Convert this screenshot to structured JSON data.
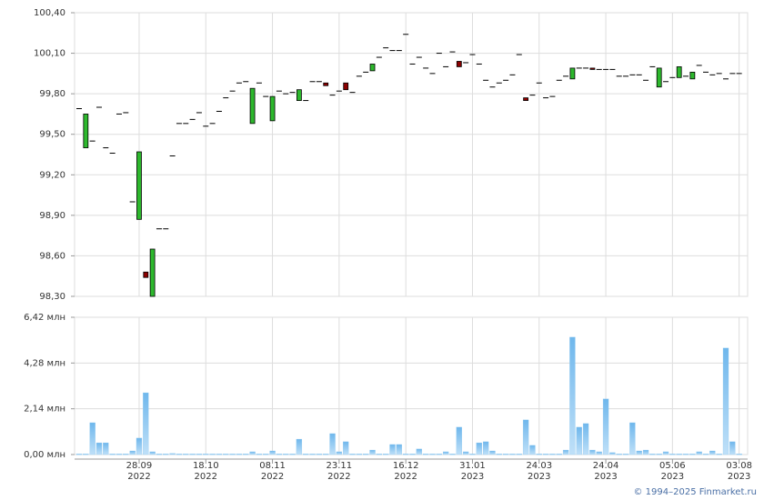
{
  "credit": "© 1994–2025 Finmarket.ru",
  "chart_data": [
    {
      "type": "candlestick",
      "up_color": "#2db82d",
      "down_color": "#8b0000",
      "grid": true,
      "ylim": [
        98.3,
        100.4
      ],
      "yticks": [
        {
          "value": 98.3,
          "label": "98,30"
        },
        {
          "value": 98.6,
          "label": "98,60"
        },
        {
          "value": 98.9,
          "label": "98,90"
        },
        {
          "value": 99.2,
          "label": "99,20"
        },
        {
          "value": 99.5,
          "label": "99,50"
        },
        {
          "value": 99.8,
          "label": "99,80"
        },
        {
          "value": 100.1,
          "label": "100,10"
        },
        {
          "value": 100.4,
          "label": "100,40"
        }
      ],
      "categories": [
        null,
        null,
        null,
        null,
        null,
        null,
        null,
        null,
        null,
        "28.09\n2022",
        null,
        null,
        null,
        null,
        null,
        null,
        null,
        null,
        null,
        "18.10\n2022",
        null,
        null,
        null,
        null,
        null,
        null,
        null,
        null,
        null,
        "08.11\n2022",
        null,
        null,
        null,
        null,
        null,
        null,
        null,
        null,
        null,
        "23.11\n2022",
        null,
        null,
        null,
        null,
        null,
        null,
        null,
        null,
        null,
        "16.12\n2022",
        null,
        null,
        null,
        null,
        null,
        null,
        null,
        null,
        null,
        "31.01\n2023",
        null,
        null,
        null,
        null,
        null,
        null,
        null,
        null,
        null,
        "24.03\n2023",
        null,
        null,
        null,
        null,
        null,
        null,
        null,
        null,
        null,
        "24.04\n2023",
        null,
        null,
        null,
        null,
        null,
        null,
        null,
        null,
        null,
        "05.06\n2023",
        null,
        null,
        null,
        null,
        null,
        null,
        null,
        null,
        null,
        "03.08\n2023"
      ],
      "open": [
        99.69,
        99.4,
        99.45,
        99.7,
        99.4,
        99.36,
        99.65,
        99.66,
        99.0,
        98.87,
        98.48,
        98.3,
        98.8,
        98.8,
        99.34,
        99.58,
        99.58,
        99.61,
        99.66,
        99.56,
        99.58,
        99.67,
        99.77,
        99.82,
        99.88,
        99.89,
        99.58,
        99.88,
        99.78,
        99.6,
        99.82,
        99.8,
        99.81,
        99.75,
        99.75,
        99.89,
        99.89,
        99.88,
        99.79,
        99.82,
        99.88,
        99.81,
        99.93,
        99.96,
        99.97,
        100.07,
        100.14,
        100.12,
        100.12,
        100.24,
        100.02,
        100.07,
        99.99,
        99.95,
        100.1,
        100.0,
        100.11,
        100.04,
        100.03,
        100.09,
        100.02,
        99.9,
        99.85,
        99.88,
        99.9,
        99.94,
        100.09,
        99.77,
        99.79,
        99.88,
        99.77,
        99.78,
        99.9,
        99.93,
        99.91,
        99.99,
        99.99,
        99.99,
        99.98,
        99.98,
        99.98,
        99.93,
        99.93,
        99.94,
        99.94,
        99.9,
        100.0,
        99.85,
        99.89,
        99.92,
        99.92,
        99.93,
        99.91,
        100.01,
        99.96,
        99.94,
        99.95,
        99.91,
        99.95,
        99.95
      ],
      "close": [
        99.69,
        99.65,
        99.45,
        99.7,
        99.4,
        99.36,
        99.65,
        99.66,
        99.0,
        99.37,
        98.44,
        98.65,
        98.8,
        98.8,
        99.34,
        99.58,
        99.58,
        99.61,
        99.66,
        99.56,
        99.58,
        99.67,
        99.77,
        99.82,
        99.88,
        99.89,
        99.84,
        99.88,
        99.78,
        99.78,
        99.82,
        99.8,
        99.81,
        99.83,
        99.75,
        99.89,
        99.89,
        99.86,
        99.79,
        99.82,
        99.83,
        99.81,
        99.93,
        99.96,
        100.02,
        100.07,
        100.14,
        100.12,
        100.12,
        100.24,
        100.02,
        100.07,
        99.99,
        99.95,
        100.1,
        100.0,
        100.11,
        100.0,
        100.03,
        100.09,
        100.02,
        99.9,
        99.85,
        99.88,
        99.9,
        99.94,
        100.09,
        99.75,
        99.79,
        99.88,
        99.77,
        99.78,
        99.9,
        99.93,
        99.99,
        99.99,
        99.99,
        99.98,
        99.98,
        99.98,
        99.98,
        99.93,
        99.93,
        99.94,
        99.94,
        99.9,
        100.0,
        99.99,
        99.89,
        99.92,
        100.0,
        99.93,
        99.96,
        100.01,
        99.96,
        99.94,
        99.95,
        99.91,
        99.95,
        99.95
      ]
    },
    {
      "type": "bar",
      "color": "#8ec8f0",
      "grid": true,
      "ylim": [
        0,
        6.42
      ],
      "yticks": [
        {
          "value": 0,
          "label": "0,00 млн"
        },
        {
          "value": 2.14,
          "label": "2,14 млн"
        },
        {
          "value": 4.28,
          "label": "4,28 млн"
        },
        {
          "value": 6.42,
          "label": "6,42 млн"
        }
      ],
      "values": [
        0.03,
        0.03,
        1.49,
        0.55,
        0.55,
        0.03,
        0.03,
        0.03,
        0.17,
        0.77,
        2.89,
        0.13,
        0.03,
        0.03,
        0.05,
        0.03,
        0.03,
        0.03,
        0.03,
        0.03,
        0.03,
        0.03,
        0.03,
        0.03,
        0.03,
        0.03,
        0.13,
        0.03,
        0.03,
        0.17,
        0.03,
        0.03,
        0.03,
        0.72,
        0.03,
        0.03,
        0.03,
        0.03,
        0.98,
        0.13,
        0.6,
        0.03,
        0.03,
        0.03,
        0.21,
        0.03,
        0.03,
        0.47,
        0.47,
        0.03,
        0.03,
        0.26,
        0.03,
        0.03,
        0.03,
        0.13,
        0.03,
        1.28,
        0.13,
        0.03,
        0.55,
        0.6,
        0.17,
        0.03,
        0.03,
        0.03,
        0.03,
        1.62,
        0.43,
        0.03,
        0.03,
        0.03,
        0.03,
        0.21,
        5.49,
        1.28,
        1.45,
        0.21,
        0.13,
        2.6,
        0.09,
        0.03,
        0.03,
        1.49,
        0.17,
        0.21,
        0.03,
        0.03,
        0.13,
        0.03,
        0.03,
        0.03,
        0.03,
        0.13,
        0.03,
        0.17,
        0.03,
        4.98,
        0.6,
        0.03
      ]
    }
  ]
}
